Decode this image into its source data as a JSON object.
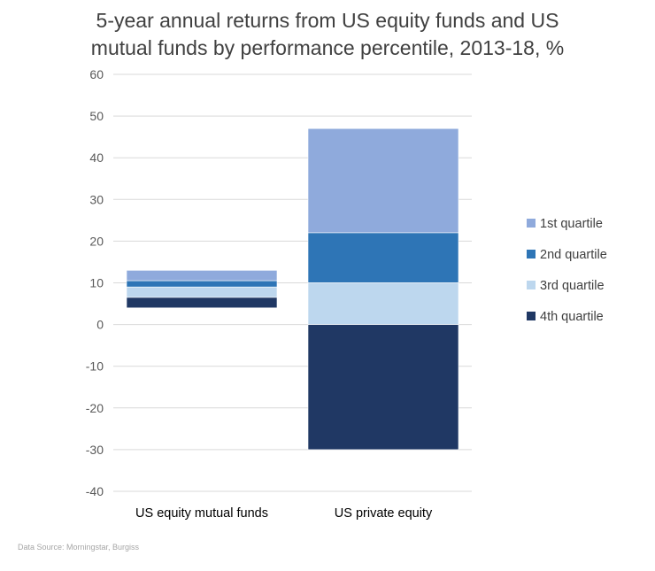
{
  "title_line1": "5-year annual returns from US equity funds and US",
  "title_line2": "mutual funds by performance percentile, 2013-18, %",
  "source": "Data Source: Morningstar, Burgiss",
  "chart_data": {
    "type": "bar",
    "subtype": "floating-stacked",
    "title": "5-year annual returns from US equity funds and US mutual funds by performance percentile, 2013-18, %",
    "categories": [
      "US equity mutual funds",
      "US private equity"
    ],
    "ylim": [
      -40,
      60
    ],
    "yticks": [
      60,
      50,
      40,
      30,
      20,
      10,
      0,
      -10,
      -20,
      -30,
      -40
    ],
    "grid": true,
    "legend_position": "right",
    "series": [
      {
        "name": "1st quartile",
        "color": "#8faadc",
        "ranges": [
          [
            10.5,
            13.0
          ],
          [
            22.0,
            47.0
          ]
        ]
      },
      {
        "name": "2nd quartile",
        "color": "#2e75b6",
        "ranges": [
          [
            9.0,
            10.5
          ],
          [
            10.0,
            22.0
          ]
        ]
      },
      {
        "name": "3rd quartile",
        "color": "#bdd7ee",
        "ranges": [
          [
            6.5,
            9.0
          ],
          [
            0.0,
            10.0
          ]
        ]
      },
      {
        "name": "4th quartile",
        "color": "#203864",
        "ranges": [
          [
            4.0,
            6.5
          ],
          [
            -30.0,
            0.0
          ]
        ]
      }
    ]
  }
}
